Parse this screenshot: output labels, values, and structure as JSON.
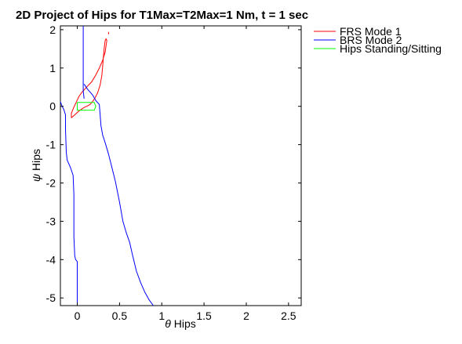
{
  "chart_data": {
    "type": "line",
    "title": "2D Project of Hips for T1Max=T2Max=1 Nm, t = 1 sec",
    "xlabel": {
      "symbol": "θ",
      "text": " Hips"
    },
    "ylabel": {
      "symbol": "ψ",
      "text": " Hips"
    },
    "xlim": [
      -0.2,
      2.65
    ],
    "ylim": [
      -5.2,
      2.1
    ],
    "xticks": [
      0,
      0.5,
      1,
      1.5,
      2,
      2.5
    ],
    "xtick_labels": [
      "0",
      "0.5",
      "1",
      "1.5",
      "2",
      "2.5"
    ],
    "yticks": [
      2,
      1,
      0,
      -1,
      -2,
      -3,
      -4,
      -5
    ],
    "ytick_labels": [
      "2",
      "1",
      "0",
      "-1",
      "-2",
      "-3",
      "-4",
      "-5"
    ],
    "grid": false,
    "legend": "top-right, outside plot",
    "series": [
      {
        "name": "FRS Mode 1",
        "color": "#ff0000",
        "points": [
          [
            -0.07,
            -0.3
          ],
          [
            -0.02,
            -0.2
          ],
          [
            0.02,
            -0.12
          ],
          [
            0.06,
            -0.06
          ],
          [
            0.09,
            -0.02
          ],
          [
            0.12,
            0.01
          ],
          [
            0.15,
            0.05
          ],
          [
            0.18,
            0.12
          ],
          [
            0.21,
            0.22
          ],
          [
            0.24,
            0.35
          ],
          [
            0.27,
            0.55
          ],
          [
            0.29,
            0.8
          ],
          [
            0.3,
            1.05
          ],
          [
            0.31,
            1.3
          ],
          [
            0.32,
            1.55
          ],
          [
            0.33,
            1.72
          ],
          [
            0.34,
            1.76
          ],
          [
            0.35,
            1.72
          ],
          [
            0.34,
            1.58
          ],
          [
            0.33,
            1.42
          ],
          [
            0.3,
            1.2
          ],
          [
            0.26,
            1.0
          ],
          [
            0.22,
            0.82
          ],
          [
            0.17,
            0.64
          ],
          [
            0.11,
            0.5
          ],
          [
            0.06,
            0.38
          ],
          [
            0.02,
            0.26
          ],
          [
            -0.01,
            0.12
          ],
          [
            -0.04,
            -0.02
          ],
          [
            -0.07,
            -0.18
          ],
          [
            -0.07,
            -0.3
          ]
        ],
        "extra_points": [
          [
            0.37,
            1.88
          ],
          [
            0.37,
            1.94
          ]
        ]
      },
      {
        "name": "BRS Mode 2",
        "color": "#0000ff",
        "branches": [
          [
            [
              0.07,
              2.1
            ],
            [
              0.07,
              0.65
            ],
            [
              0.07,
              0.4
            ],
            [
              0.08,
              0.2
            ]
          ],
          [
            [
              -0.2,
              0.12
            ],
            [
              -0.18,
              0.0
            ],
            [
              -0.16,
              -0.08
            ],
            [
              -0.14,
              -0.22
            ],
            [
              -0.14,
              -0.6
            ],
            [
              -0.13,
              -1.2
            ],
            [
              -0.12,
              -1.4
            ],
            [
              -0.08,
              -1.6
            ],
            [
              -0.05,
              -1.8
            ],
            [
              -0.04,
              -2.3
            ],
            [
              -0.04,
              -3.4
            ],
            [
              -0.03,
              -3.9
            ],
            [
              -0.02,
              -4.0
            ],
            [
              0.0,
              -4.05
            ],
            [
              0.0,
              -4.5
            ],
            [
              0.0,
              -5.2
            ]
          ],
          [
            [
              0.08,
              0.58
            ],
            [
              0.12,
              0.45
            ],
            [
              0.18,
              0.3
            ],
            [
              0.22,
              0.15
            ],
            [
              0.26,
              0.05
            ],
            [
              0.27,
              -0.2
            ],
            [
              0.28,
              -0.5
            ],
            [
              0.3,
              -0.75
            ],
            [
              0.33,
              -0.95
            ],
            [
              0.37,
              -1.25
            ],
            [
              0.41,
              -1.6
            ],
            [
              0.45,
              -1.95
            ],
            [
              0.5,
              -2.5
            ],
            [
              0.54,
              -3.0
            ],
            [
              0.58,
              -3.3
            ],
            [
              0.62,
              -3.55
            ],
            [
              0.65,
              -3.85
            ],
            [
              0.7,
              -4.3
            ],
            [
              0.75,
              -4.6
            ],
            [
              0.8,
              -4.85
            ],
            [
              0.85,
              -5.05
            ],
            [
              0.9,
              -5.2
            ]
          ]
        ]
      },
      {
        "name": "Hips Standing/Sitting",
        "color": "#00ff00",
        "points": [
          [
            0.0,
            0.1
          ],
          [
            0.2,
            0.1
          ],
          [
            0.22,
            0.0
          ],
          [
            0.2,
            -0.1
          ],
          [
            0.0,
            -0.1
          ],
          [
            0.0,
            0.1
          ]
        ]
      }
    ]
  }
}
